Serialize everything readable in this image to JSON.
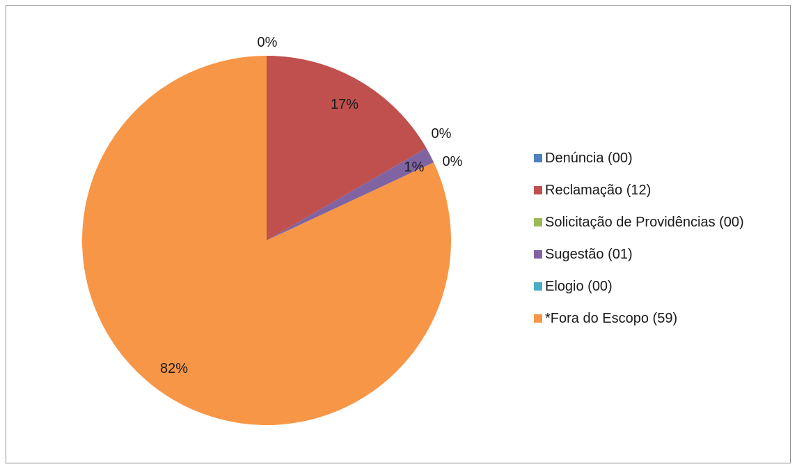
{
  "chart_data": {
    "type": "pie",
    "title": "",
    "categories": [
      "Denúncia (00)",
      "Reclamação (12)",
      "Solicitação de Providências (00)",
      "Sugestão (01)",
      "Elogio (00)",
      "*Fora do Escopo (59)"
    ],
    "values": [
      0,
      12,
      0,
      1,
      0,
      59
    ],
    "percent_labels": [
      "0%",
      "17%",
      "0%",
      "1%",
      "0%",
      "82%"
    ],
    "colors": [
      "#4F81BD",
      "#C0504D",
      "#9BBB59",
      "#8064A2",
      "#4BACC6",
      "#F79646"
    ],
    "legend_position": "right"
  }
}
